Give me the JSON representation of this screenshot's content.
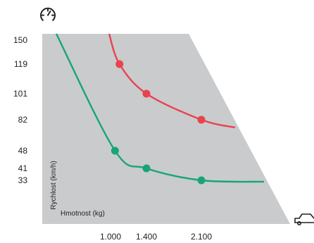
{
  "chart_data": {
    "type": "line",
    "xlabel": "Hmotnost (kg)",
    "ylabel": "Rychlost (km/h)",
    "x_ticks": [
      {
        "value": 1000,
        "label": "1.000"
      },
      {
        "value": 1400,
        "label": "1.400"
      },
      {
        "value": 2100,
        "label": "2.100"
      }
    ],
    "y_ticks": [
      {
        "value": 150,
        "label": "150"
      },
      {
        "value": 119,
        "label": "119"
      },
      {
        "value": 101,
        "label": "101"
      },
      {
        "value": 82,
        "label": "82"
      },
      {
        "value": 48,
        "label": "48"
      },
      {
        "value": 41,
        "label": "41"
      },
      {
        "value": 33,
        "label": "33"
      }
    ],
    "series": [
      {
        "color": "#e8434f",
        "points": [
          {
            "x": 1100,
            "y": 119
          },
          {
            "x": 1400,
            "y": 101
          },
          {
            "x": 2100,
            "y": 82
          }
        ]
      },
      {
        "color": "#17a577",
        "points": [
          {
            "x": 1050,
            "y": 48
          },
          {
            "x": 1400,
            "y": 41
          },
          {
            "x": 2100,
            "y": 33
          }
        ]
      }
    ],
    "grid": false,
    "legend": "none",
    "background_color": "#c9cbcd",
    "icons": {
      "top": "speedometer-icon",
      "right": "car-icon"
    }
  }
}
